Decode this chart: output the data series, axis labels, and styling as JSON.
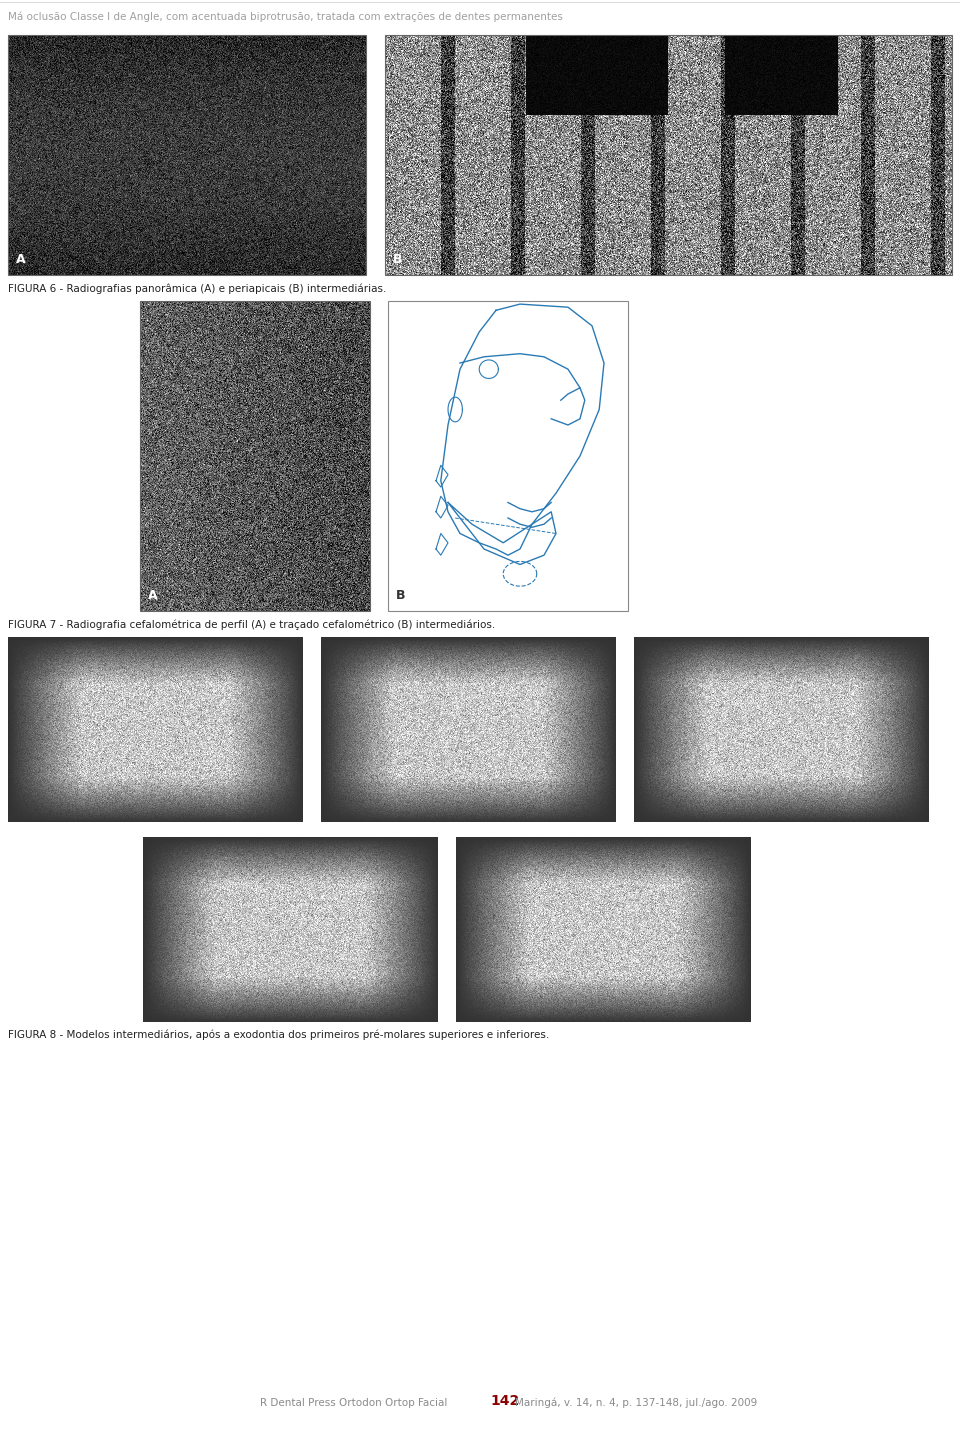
{
  "bg_color": "#ffffff",
  "header_text": "Má oclusão Classe I de Angle, com acentuada biprotrusão, tratada com extrações de dentes permanentes",
  "header_color": "#a0a0a0",
  "header_fontsize": 7.5,
  "fig6_caption": "FIGURA 6 - Radiografias panorâmica (A) e periapicais (B) intermediárias.",
  "fig7_caption": "FIGURA 7 - Radiografia cefalométrica de perfil (A) e traçado cefalométrico (B) intermediários.",
  "fig8_caption": "FIGURA 8 - Modelos intermediários, após a exodontia dos primeiros pré-molares superiores e inferiores.",
  "footer_journal": "R Dental Press Ortodon Ortop Facial",
  "footer_page": "142",
  "footer_details": "Maringá, v. 14, n. 4, p. 137-148, jul./ago. 2009",
  "footer_journal_color": "#8b8b8b",
  "footer_page_color": "#8b0000",
  "footer_details_color": "#8b8b8b",
  "caption_fontsize": 7.5
}
